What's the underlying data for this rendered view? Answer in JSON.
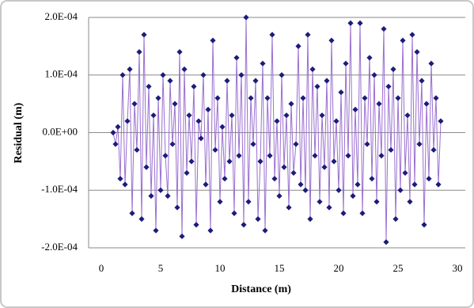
{
  "chart_data": {
    "type": "line",
    "xlabel": "Distance (m)",
    "ylabel": "Residual (m)",
    "xlim": [
      0,
      30
    ],
    "xticks": [
      0,
      5,
      10,
      15,
      20,
      25,
      30
    ],
    "ylim": [
      -0.0002,
      0.0002
    ],
    "yticks": [
      {
        "value": -0.0002,
        "label": "-2.0E-04"
      },
      {
        "value": -0.0001,
        "label": "-1.0E-04"
      },
      {
        "value": 0,
        "label": "0.0E+00"
      },
      {
        "value": 0.0001,
        "label": "1.0E-04"
      },
      {
        "value": 0.0002,
        "label": "2.0E-04"
      }
    ],
    "grid": true,
    "series": [
      {
        "color": "#9a6fd0",
        "marker_color": "#1c1c7a",
        "x": [
          1,
          1.2,
          1.4,
          1.6,
          1.8,
          2,
          2.2,
          2.4,
          2.6,
          2.8,
          3,
          3.2,
          3.4,
          3.6,
          3.8,
          4,
          4.2,
          4.4,
          4.6,
          4.8,
          5,
          5.2,
          5.4,
          5.6,
          5.8,
          6,
          6.2,
          6.4,
          6.6,
          6.8,
          7,
          7.2,
          7.4,
          7.6,
          7.8,
          8,
          8.2,
          8.4,
          8.6,
          8.8,
          9,
          9.2,
          9.4,
          9.6,
          9.8,
          10,
          10.2,
          10.4,
          10.6,
          10.8,
          11,
          11.2,
          11.4,
          11.6,
          11.8,
          12,
          12.2,
          12.4,
          12.6,
          12.8,
          13,
          13.2,
          13.4,
          13.6,
          13.8,
          14,
          14.2,
          14.4,
          14.6,
          14.8,
          15,
          15.2,
          15.4,
          15.6,
          15.8,
          16,
          16.2,
          16.4,
          16.6,
          16.8,
          17,
          17.2,
          17.4,
          17.6,
          17.8,
          18,
          18.2,
          18.4,
          18.6,
          18.8,
          19,
          19.2,
          19.4,
          19.6,
          19.8,
          20,
          20.2,
          20.4,
          20.6,
          20.8,
          21,
          21.2,
          21.4,
          21.6,
          21.8,
          22,
          22.2,
          22.4,
          22.6,
          22.8,
          23,
          23.2,
          23.4,
          23.6,
          23.8,
          24,
          24.2,
          24.4,
          24.6,
          24.8,
          25,
          25.2,
          25.4,
          25.6,
          25.8,
          26,
          26.2,
          26.4,
          26.6,
          26.8,
          27,
          27.2,
          27.4,
          27.6,
          27.8,
          28,
          28.2,
          28.4,
          28.6
        ],
        "values": [
          0,
          -2e-05,
          1e-05,
          -8e-05,
          0.0001,
          -9e-05,
          2e-05,
          0.00011,
          -0.00014,
          5e-05,
          -3e-05,
          0.00014,
          -0.00015,
          0.00017,
          -6e-05,
          8e-05,
          -0.00011,
          3e-05,
          -0.00017,
          6e-05,
          -0.0001,
          0.0001,
          -4e-05,
          -0.00011,
          9e-05,
          -2e-05,
          5e-05,
          -0.00013,
          0.00014,
          -0.00018,
          0.00011,
          -7e-05,
          3e-05,
          -5e-05,
          8e-05,
          -0.00016,
          2e-05,
          -1e-05,
          0.0001,
          -9e-05,
          4e-05,
          -0.00017,
          0.00016,
          -3e-05,
          6e-05,
          -0.00012,
          1e-05,
          -8e-05,
          9e-05,
          -5e-05,
          3e-05,
          -0.00014,
          0.00013,
          -4e-05,
          0.0001,
          -0.00016,
          0.0002,
          -0.00012,
          6e-05,
          -2e-05,
          9e-05,
          -0.00015,
          -5e-05,
          0.00012,
          -0.00017,
          6e-05,
          -4e-05,
          0.00017,
          -8e-05,
          2e-05,
          -0.00011,
          0.0001,
          -6e-05,
          3e-05,
          -0.00013,
          5e-05,
          -7e-05,
          -2e-05,
          0.00015,
          -9e-05,
          6e-05,
          -0.0001,
          0.00017,
          -0.00015,
          0.00011,
          -4e-05,
          8e-05,
          -0.00012,
          3e-05,
          -6e-05,
          9e-05,
          -0.00013,
          0.00016,
          -5e-05,
          2e-05,
          -0.0001,
          7e-05,
          -0.00014,
          0.00012,
          -4e-05,
          0.00019,
          -0.00011,
          4e-05,
          -9e-05,
          0.00019,
          -0.00014,
          6e-05,
          -2e-05,
          0.00013,
          -8e-05,
          0.0001,
          -0.00012,
          5e-05,
          -4e-05,
          0.00018,
          -0.00019,
          8e-05,
          -3e-05,
          0.00011,
          -0.00015,
          6e-05,
          -0.0001,
          0.00016,
          -7e-05,
          3e-05,
          -0.00012,
          0.00017,
          -9e-05,
          0.00014,
          -2e-05,
          9e-05,
          -0.00016,
          5e-05,
          -8e-05,
          0.00012,
          -3e-05,
          6e-05,
          -9e-05,
          2e-05
        ]
      }
    ]
  }
}
